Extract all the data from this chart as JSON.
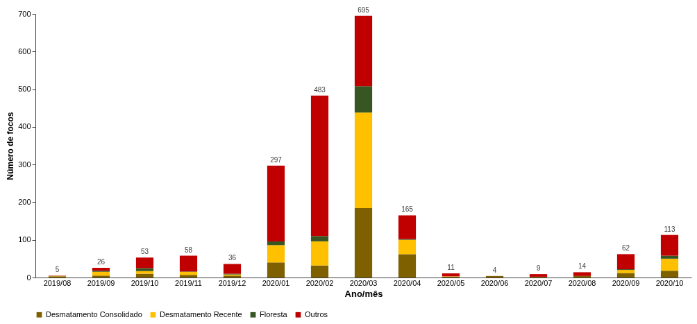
{
  "chart_data": {
    "type": "bar",
    "stacked": true,
    "xlabel": "Ano/mês",
    "ylabel": "Número de focos",
    "categories": [
      "2019/08",
      "2019/09",
      "2019/10",
      "2019/11",
      "2019/12",
      "2020/01",
      "2020/02",
      "2020/03",
      "2020/04",
      "2020/05",
      "2020/06",
      "2020/07",
      "2020/08",
      "2020/09",
      "2020/10"
    ],
    "series": [
      {
        "name": "Desmatamento Consolidado",
        "color": "#7f6000",
        "values": [
          3,
          5,
          10,
          7,
          5,
          40,
          32,
          184,
          62,
          2,
          4,
          2,
          4,
          12,
          18
        ]
      },
      {
        "name": "Desmatamento Recente",
        "color": "#ffc000",
        "values": [
          1,
          10,
          7,
          8,
          3,
          46,
          64,
          254,
          38,
          1,
          0,
          0,
          null,
          8,
          32
        ]
      },
      {
        "name": "Floresta",
        "color": "#375623",
        "values": [
          0,
          3,
          8,
          1,
          2,
          10,
          14,
          70,
          2,
          0,
          0,
          0,
          0,
          2,
          8
        ]
      },
      {
        "name": "Outros",
        "color": "#c00000",
        "values": [
          1,
          8,
          28,
          42,
          26,
          201,
          373,
          187,
          63,
          8,
          null,
          7,
          10,
          40,
          55
        ]
      }
    ],
    "totals": [
      "5",
      "26",
      "53",
      "58",
      "36",
      "297",
      "483",
      "695",
      "165",
      "11",
      "4",
      "9",
      "14",
      "62",
      "113"
    ],
    "ylim": [
      0,
      700
    ],
    "yticks": [
      0,
      100,
      200,
      300,
      400,
      500,
      600,
      700
    ],
    "grid": false,
    "legend": "bottom"
  }
}
